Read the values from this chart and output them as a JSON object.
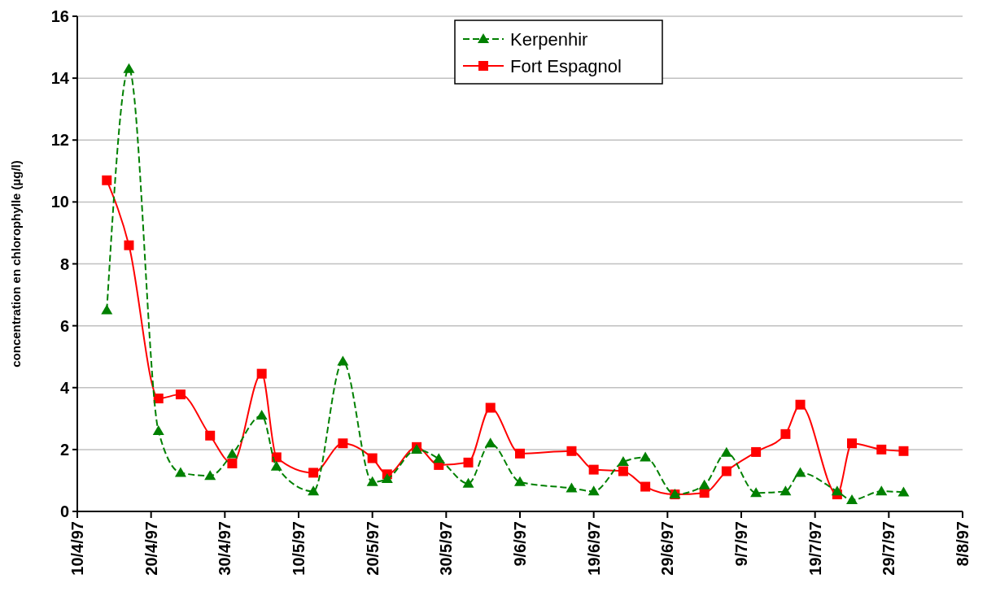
{
  "chart_data": {
    "type": "line",
    "ylabel": "concentration en chlorophylle (µg/l)",
    "x": [
      "1997-04-14",
      "1997-04-17",
      "1997-04-21",
      "1997-04-24",
      "1997-04-28",
      "1997-05-01",
      "1997-05-05",
      "1997-05-07",
      "1997-05-12",
      "1997-05-16",
      "1997-05-20",
      "1997-05-22",
      "1997-05-26",
      "1997-05-29",
      "1997-06-02",
      "1997-06-05",
      "1997-06-09",
      "1997-06-16",
      "1997-06-19",
      "1997-06-23",
      "1997-06-26",
      "1997-06-30",
      "1997-07-04",
      "1997-07-07",
      "1997-07-11",
      "1997-07-15",
      "1997-07-17",
      "1997-07-22",
      "1997-07-24",
      "1997-07-28",
      "1997-07-31"
    ],
    "series": [
      {
        "name": "Kerpenhir",
        "color": "#008000",
        "marker": "triangle",
        "line_style": "dashed",
        "values": [
          6.5,
          14.3,
          2.6,
          1.25,
          1.15,
          1.85,
          3.1,
          1.45,
          0.65,
          4.85,
          0.95,
          1.05,
          2.0,
          1.7,
          0.9,
          2.2,
          0.95,
          0.75,
          0.65,
          1.6,
          1.75,
          0.55,
          0.85,
          1.9,
          0.6,
          0.65,
          1.25,
          0.65,
          0.37,
          0.65,
          0.62
        ]
      },
      {
        "name": "Fort Espagnol",
        "color": "#ff0000",
        "marker": "square",
        "line_style": "solid",
        "values": [
          10.7,
          8.6,
          3.65,
          3.78,
          2.45,
          1.55,
          4.45,
          1.75,
          1.25,
          2.2,
          1.72,
          1.2,
          2.08,
          1.5,
          1.58,
          3.35,
          1.87,
          1.95,
          1.35,
          1.3,
          0.8,
          0.55,
          0.6,
          1.3,
          1.92,
          2.5,
          3.45,
          0.55,
          2.2,
          2.0,
          1.95
        ]
      }
    ],
    "xlim": [
      "1997-04-10",
      "1997-08-08"
    ],
    "xticks": [
      {
        "value": "1997-04-10",
        "label": "10/4/97"
      },
      {
        "value": "1997-04-20",
        "label": "20/4/97"
      },
      {
        "value": "1997-04-30",
        "label": "30/4/97"
      },
      {
        "value": "1997-05-10",
        "label": "10/5/97"
      },
      {
        "value": "1997-05-20",
        "label": "20/5/97"
      },
      {
        "value": "1997-05-30",
        "label": "30/5/97"
      },
      {
        "value": "1997-06-09",
        "label": "9/6/97"
      },
      {
        "value": "1997-06-19",
        "label": "19/6/97"
      },
      {
        "value": "1997-06-29",
        "label": "29/6/97"
      },
      {
        "value": "1997-07-09",
        "label": "9/7/97"
      },
      {
        "value": "1997-07-19",
        "label": "19/7/97"
      },
      {
        "value": "1997-07-29",
        "label": "29/7/97"
      },
      {
        "value": "1997-08-08",
        "label": "8/8/97"
      }
    ],
    "ylim": [
      0,
      16
    ],
    "yticks": [
      0,
      2,
      4,
      6,
      8,
      10,
      12,
      14,
      16
    ],
    "grid": "y",
    "legend": "top"
  }
}
